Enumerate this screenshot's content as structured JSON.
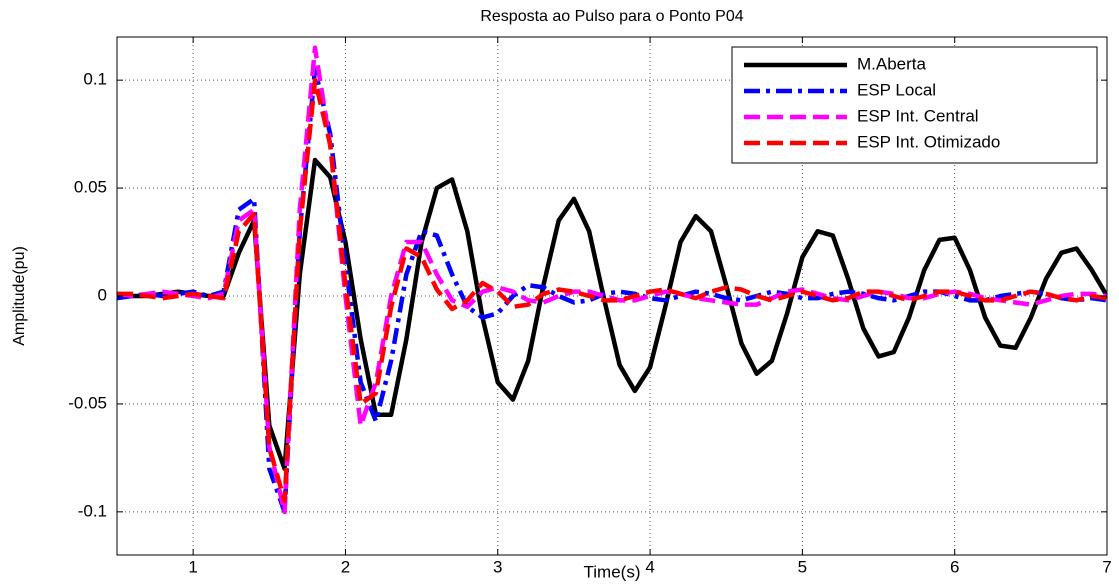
{
  "chart_data": {
    "type": "line",
    "title": "Resposta ao Pulso para o Ponto P04",
    "xlabel": "Time(s)",
    "ylabel": "Amplitude(pu)",
    "x": [
      0.5,
      0.6,
      0.7,
      0.8,
      0.9,
      1.0,
      1.1,
      1.2,
      1.3,
      1.4,
      1.5,
      1.6,
      1.7,
      1.8,
      1.9,
      2.0,
      2.1,
      2.2,
      2.3,
      2.4,
      2.5,
      2.6,
      2.7,
      2.8,
      2.9,
      3.0,
      3.1,
      3.2,
      3.3,
      3.4,
      3.5,
      3.6,
      3.7,
      3.8,
      3.9,
      4.0,
      4.1,
      4.2,
      4.3,
      4.4,
      4.5,
      4.6,
      4.7,
      4.8,
      4.9,
      5.0,
      5.1,
      5.2,
      5.3,
      5.4,
      5.5,
      5.6,
      5.7,
      5.8,
      5.9,
      6.0,
      6.1,
      6.2,
      6.3,
      6.4,
      6.5,
      6.6,
      6.7,
      6.8,
      6.9,
      7.0
    ],
    "series": [
      {
        "name": "M.Aberta",
        "color": "#000000",
        "line_style": "solid",
        "values": [
          0,
          0,
          0,
          0.001,
          0.002,
          0.001,
          0,
          0,
          0.02,
          0.035,
          -0.06,
          -0.08,
          0.01,
          0.063,
          0.055,
          0.025,
          -0.02,
          -0.055,
          -0.055,
          -0.02,
          0.025,
          0.05,
          0.054,
          0.03,
          -0.01,
          -0.04,
          -0.048,
          -0.03,
          0.005,
          0.035,
          0.045,
          0.03,
          -0.002,
          -0.032,
          -0.044,
          -0.033,
          -0.005,
          0.025,
          0.037,
          0.03,
          0.005,
          -0.022,
          -0.036,
          -0.03,
          -0.008,
          0.018,
          0.03,
          0.028,
          0.008,
          -0.015,
          -0.028,
          -0.026,
          -0.01,
          0.012,
          0.026,
          0.027,
          0.012,
          -0.01,
          -0.023,
          -0.024,
          -0.01,
          0.008,
          0.02,
          0.022,
          0.012,
          0
        ]
      },
      {
        "name": "ESP Local",
        "color": "#0000ff",
        "line_style": "dashdot",
        "values": [
          -0.001,
          0,
          0.001,
          0,
          0.001,
          0.002,
          0,
          0.002,
          0.04,
          0.045,
          -0.08,
          -0.1,
          0.03,
          0.105,
          0.075,
          0.015,
          -0.04,
          -0.058,
          -0.03,
          0.01,
          0.03,
          0.028,
          0.01,
          -0.005,
          -0.01,
          -0.008,
          0,
          0.005,
          0.004,
          0,
          -0.003,
          -0.002,
          0.001,
          0.002,
          0.001,
          -0.001,
          -0.002,
          0,
          0.002,
          0.001,
          -0.001,
          -0.002,
          0,
          0.002,
          0.001,
          -0.001,
          -0.001,
          0.001,
          0.002,
          0.001,
          -0.001,
          -0.002,
          0,
          0.002,
          0.002,
          0,
          -0.002,
          -0.002,
          0,
          0.001,
          0.002,
          0.001,
          -0.001,
          -0.002,
          -0.001,
          -0.002
        ]
      },
      {
        "name": "ESP Int. Central",
        "color": "#ff00ff",
        "line_style": "dashed",
        "values": [
          0.001,
          0,
          0.001,
          0.002,
          0.001,
          0,
          -0.001,
          0.001,
          0.035,
          0.04,
          -0.07,
          -0.1,
          0.04,
          0.115,
          0.07,
          0,
          -0.06,
          -0.04,
          0,
          0.025,
          0.025,
          0.01,
          -0.002,
          -0.005,
          0.002,
          0.004,
          0.002,
          -0.002,
          -0.003,
          0,
          0.002,
          0.002,
          0,
          -0.002,
          -0.002,
          0,
          0.002,
          0.001,
          -0.001,
          -0.002,
          -0.003,
          -0.004,
          -0.004,
          -0.001,
          0.002,
          0.003,
          0.001,
          -0.001,
          -0.002,
          0,
          0.002,
          0.001,
          -0.001,
          -0.001,
          0.001,
          0.002,
          0.001,
          -0.001,
          -0.002,
          -0.003,
          -0.004,
          -0.002,
          0,
          0.001,
          0.001,
          0
        ]
      },
      {
        "name": "ESP Int. Otimizado",
        "color": "#ff0000",
        "line_style": "dashed",
        "values": [
          0.001,
          0.001,
          0,
          -0.001,
          0,
          0.001,
          0,
          -0.001,
          0.03,
          0.038,
          -0.07,
          -0.095,
          0.03,
          0.1,
          0.07,
          0.005,
          -0.05,
          -0.045,
          -0.005,
          0.022,
          0.018,
          0.003,
          -0.006,
          -0.002,
          0.006,
          0.002,
          -0.005,
          -0.004,
          0.001,
          0.003,
          0.002,
          0,
          -0.002,
          -0.002,
          0,
          0.002,
          0.003,
          0.001,
          -0.001,
          0.002,
          0.004,
          0.003,
          0,
          -0.002,
          0,
          0.002,
          0,
          -0.002,
          -0.001,
          0.002,
          0.002,
          0,
          -0.002,
          0,
          0.002,
          0.002,
          0,
          -0.002,
          -0.002,
          0,
          0.002,
          0.001,
          -0.001,
          -0.002,
          0,
          -0.001
        ]
      }
    ],
    "xlim": [
      0.5,
      7
    ],
    "xticks": [
      1,
      2,
      3,
      4,
      5,
      6,
      7
    ],
    "ylim": [
      -0.12,
      0.12
    ],
    "yticks": [
      -0.1,
      -0.05,
      0,
      0.05,
      0.1
    ],
    "grid": true,
    "legend": "upper right"
  }
}
